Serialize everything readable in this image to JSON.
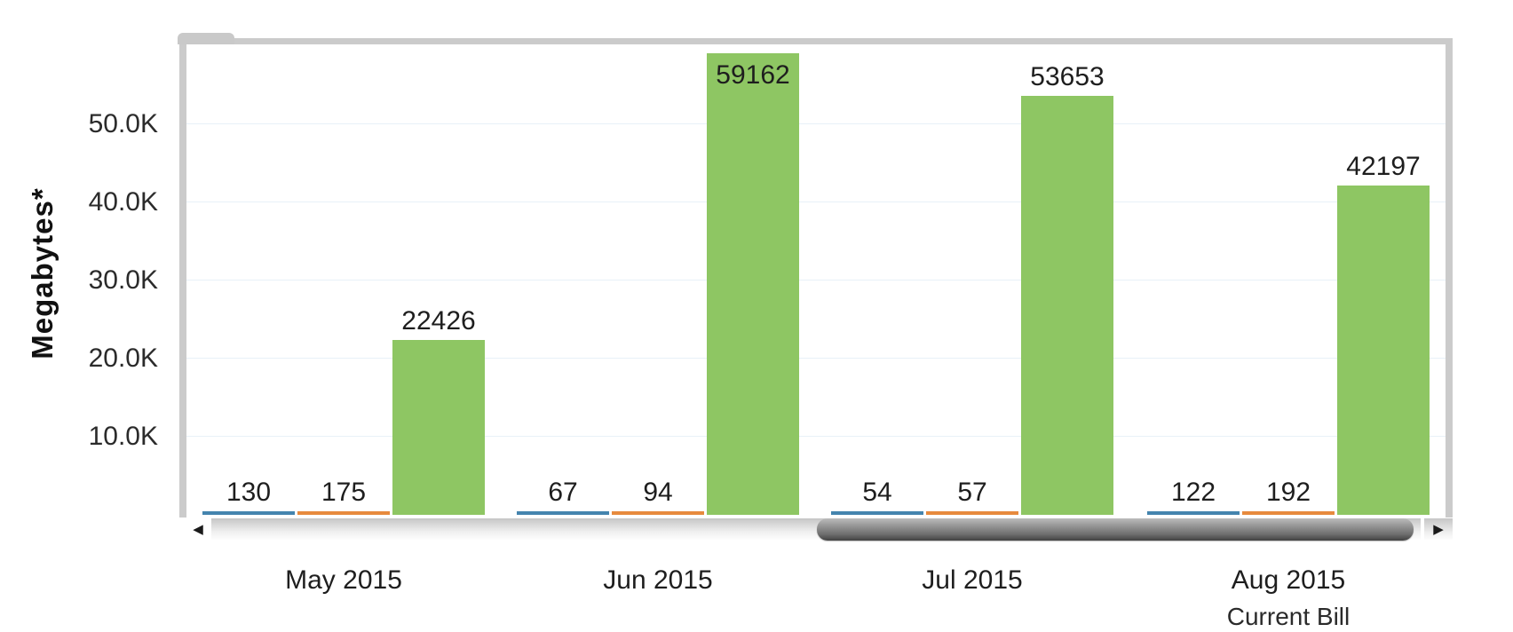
{
  "chart_data": {
    "type": "bar",
    "title": "",
    "ylabel": "Megabytes*",
    "xlabel": "",
    "categories": [
      "May 2015",
      "Jun 2015",
      "Jul 2015",
      "Aug 2015"
    ],
    "category_sublabels": [
      "",
      "",
      "",
      "Current Bill"
    ],
    "series": [
      {
        "name": "series-1-blue",
        "color": "#4484ae",
        "values": [
          130,
          67,
          54,
          122
        ]
      },
      {
        "name": "series-2-orange",
        "color": "#e78a3d",
        "values": [
          175,
          94,
          57,
          192
        ]
      },
      {
        "name": "series-3-green",
        "color": "#8ec663",
        "values": [
          22426,
          59162,
          53653,
          42197
        ]
      }
    ],
    "y_ticks": [
      {
        "label": "10.0K",
        "value": 10000
      },
      {
        "label": "20.0K",
        "value": 20000
      },
      {
        "label": "30.0K",
        "value": 30000
      },
      {
        "label": "40.0K",
        "value": 40000
      },
      {
        "label": "50.0K",
        "value": 50000
      }
    ],
    "ylim": [
      0,
      60250
    ],
    "grid": true,
    "legend_position": "none",
    "value_labels_shown": true
  },
  "scrollbar": {
    "left_arrow_icon": "◀",
    "right_arrow_icon": "▶"
  },
  "colors": {
    "frame": "#cbcbcb",
    "gridline": "#e8f1f8",
    "scroll_thumb_dark": "#414141",
    "label_text": "#1e1e1e"
  }
}
